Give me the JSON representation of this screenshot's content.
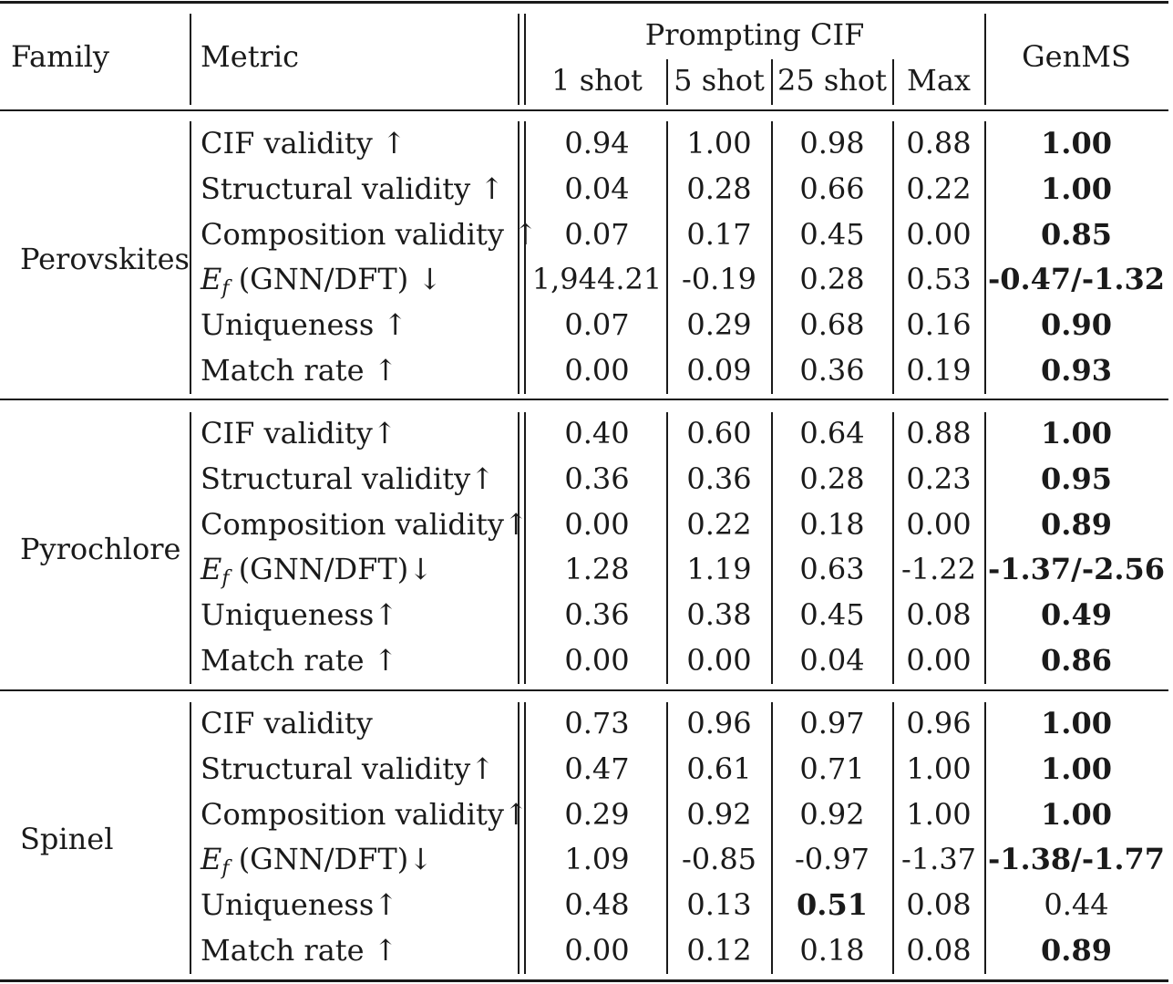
{
  "header": {
    "family": "Family",
    "metric": "Metric",
    "group": "Prompting CIF",
    "cols": [
      "1 shot",
      "5 shot",
      "25 shot",
      "Max"
    ],
    "genms": "GenMS"
  },
  "sections": [
    {
      "family": "Perovskites",
      "rows": [
        {
          "metric": "CIF validity ↑",
          "values": [
            "0.94",
            "1.00",
            "0.98",
            "0.88"
          ],
          "genms": "1.00",
          "genms_bold": true,
          "bold_col": -1
        },
        {
          "metric": "Structural validity ↑",
          "values": [
            "0.04",
            "0.28",
            "0.66",
            "0.22"
          ],
          "genms": "1.00",
          "genms_bold": true,
          "bold_col": -1
        },
        {
          "metric": "Composition validity ↑",
          "values": [
            "0.07",
            "0.17",
            "0.45",
            "0.00"
          ],
          "genms": "0.85",
          "genms_bold": true,
          "bold_col": -1
        },
        {
          "metric_sym": "E",
          "metric_sub": "f",
          "metric_rest": " (GNN/DFT) ↓",
          "values": [
            "1,944.21",
            "-0.19",
            "0.28",
            "0.53"
          ],
          "genms": "-0.47/-1.32",
          "genms_bold": true,
          "bold_col": -1
        },
        {
          "metric": "Uniqueness ↑",
          "values": [
            "0.07",
            "0.29",
            "0.68",
            "0.16"
          ],
          "genms": "0.90",
          "genms_bold": true,
          "bold_col": -1
        },
        {
          "metric": "Match rate ↑",
          "values": [
            "0.00",
            "0.09",
            "0.36",
            "0.19"
          ],
          "genms": "0.93",
          "genms_bold": true,
          "bold_col": -1
        }
      ]
    },
    {
      "family": "Pyrochlore",
      "rows": [
        {
          "metric": "CIF validity↑",
          "values": [
            "0.40",
            "0.60",
            "0.64",
            "0.88"
          ],
          "genms": "1.00",
          "genms_bold": true,
          "bold_col": -1
        },
        {
          "metric": "Structural validity↑",
          "values": [
            "0.36",
            "0.36",
            "0.28",
            "0.23"
          ],
          "genms": "0.95",
          "genms_bold": true,
          "bold_col": -1
        },
        {
          "metric": "Composition validity↑",
          "values": [
            "0.00",
            "0.22",
            "0.18",
            "0.00"
          ],
          "genms": "0.89",
          "genms_bold": true,
          "bold_col": -1
        },
        {
          "metric_sym": "E",
          "metric_sub": "f",
          "metric_rest": " (GNN/DFT)↓",
          "values": [
            "1.28",
            "1.19",
            "0.63",
            "-1.22"
          ],
          "genms": "-1.37/-2.56",
          "genms_bold": true,
          "bold_col": -1
        },
        {
          "metric": "Uniqueness↑",
          "values": [
            "0.36",
            "0.38",
            "0.45",
            "0.08"
          ],
          "genms": "0.49",
          "genms_bold": true,
          "bold_col": -1
        },
        {
          "metric": "Match rate ↑",
          "values": [
            "0.00",
            "0.00",
            "0.04",
            "0.00"
          ],
          "genms": "0.86",
          "genms_bold": true,
          "bold_col": -1
        }
      ]
    },
    {
      "family": "Spinel",
      "rows": [
        {
          "metric": "CIF validity",
          "values": [
            "0.73",
            "0.96",
            "0.97",
            "0.96"
          ],
          "genms": "1.00",
          "genms_bold": true,
          "bold_col": -1
        },
        {
          "metric": "Structural validity↑",
          "values": [
            "0.47",
            "0.61",
            "0.71",
            "1.00"
          ],
          "genms": "1.00",
          "genms_bold": true,
          "bold_col": -1
        },
        {
          "metric": "Composition validity↑",
          "values": [
            "0.29",
            "0.92",
            "0.92",
            "1.00"
          ],
          "genms": "1.00",
          "genms_bold": true,
          "bold_col": -1
        },
        {
          "metric_sym": "E",
          "metric_sub": "f",
          "metric_rest": " (GNN/DFT)↓",
          "values": [
            "1.09",
            "-0.85",
            "-0.97",
            "-1.37"
          ],
          "genms": "-1.38/-1.77",
          "genms_bold": true,
          "bold_col": -1
        },
        {
          "metric": "Uniqueness↑",
          "values": [
            "0.48",
            "0.13",
            "0.51",
            "0.08"
          ],
          "genms": "0.44",
          "genms_bold": false,
          "bold_col": 2
        },
        {
          "metric": "Match rate ↑",
          "values": [
            "0.00",
            "0.12",
            "0.18",
            "0.08"
          ],
          "genms": "0.89",
          "genms_bold": true,
          "bold_col": -1
        }
      ]
    }
  ]
}
